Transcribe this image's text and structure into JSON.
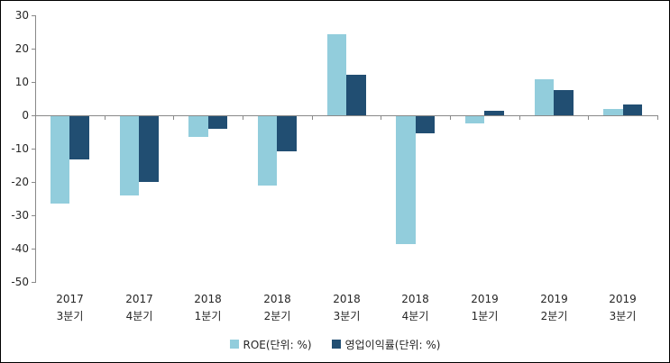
{
  "chart_data": {
    "type": "bar",
    "categories": [
      {
        "year": "2017",
        "quarter": "3분기"
      },
      {
        "year": "2017",
        "quarter": "4분기"
      },
      {
        "year": "2018",
        "quarter": "1분기"
      },
      {
        "year": "2018",
        "quarter": "2분기"
      },
      {
        "year": "2018",
        "quarter": "3분기"
      },
      {
        "year": "2018",
        "quarter": "4분기"
      },
      {
        "year": "2019",
        "quarter": "1분기"
      },
      {
        "year": "2019",
        "quarter": "2분기"
      },
      {
        "year": "2019",
        "quarter": "3분기"
      }
    ],
    "series": [
      {
        "name": "ROE(단위: %)",
        "color": "#92CDDC",
        "values": [
          -26.2,
          -23.7,
          -6.1,
          -20.7,
          24.3,
          -38.3,
          -2.1,
          10.9,
          1.8
        ]
      },
      {
        "name": "영업이익률(단위: %)",
        "color": "#214E72",
        "values": [
          -13.0,
          -19.7,
          -3.7,
          -10.5,
          12.1,
          -5.0,
          1.5,
          7.6,
          3.2
        ]
      }
    ],
    "title": "",
    "xlabel": "",
    "ylabel": "",
    "ylim": [
      -50,
      30
    ],
    "y_ticks": [
      30,
      20,
      10,
      0,
      -10,
      -20,
      -30,
      -40,
      -50
    ],
    "grid": false,
    "legend_position": "bottom"
  },
  "colors": {
    "axis": "#898989",
    "text": "#262626",
    "background": "#FFFFFF",
    "border": "#000000"
  }
}
